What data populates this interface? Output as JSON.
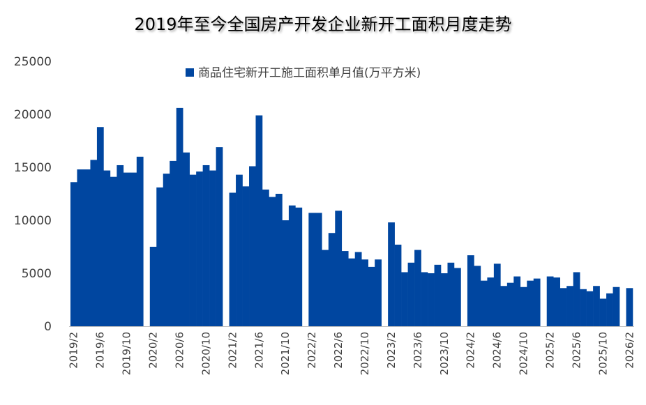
{
  "chart_data": {
    "type": "bar",
    "title": "2019年至今全国房产开发企业新开工面积月度走势",
    "series": [
      {
        "name": "商品住宅新开工施工面积单月值(万平方米)",
        "color": "#0046A0",
        "values": [
          13600,
          14800,
          14800,
          15700,
          18800,
          14700,
          14100,
          15200,
          14500,
          14500,
          16000,
          null,
          7500,
          13100,
          14400,
          15600,
          20600,
          16400,
          14300,
          14600,
          15200,
          14700,
          16900,
          null,
          12600,
          14300,
          13200,
          15100,
          19900,
          12900,
          12200,
          12500,
          10000,
          11400,
          11200,
          null,
          10700,
          10700,
          7200,
          8800,
          10900,
          7100,
          6400,
          7000,
          6300,
          5600,
          6300,
          null,
          9800,
          7700,
          5100,
          6000,
          7200,
          5100,
          5000,
          5800,
          5000,
          6000,
          5500,
          null,
          6700,
          5700,
          4300,
          4600,
          5900,
          3800,
          4100,
          4700,
          3700,
          4300,
          4500,
          null,
          4700,
          4600,
          3600,
          3800,
          5100,
          3500,
          3300,
          3800,
          2600,
          3100,
          3700,
          null,
          3600
        ]
      }
    ],
    "x_tick_labels": [
      "2019/2",
      "2019/6",
      "2019/10",
      "2020/2",
      "2020/6",
      "2020/10",
      "2021/2",
      "2021/6",
      "2021/10",
      "2022/2",
      "2022/6",
      "2022/10",
      "2023/2",
      "2023/6",
      "2023/10",
      "2024/2",
      "2024/6",
      "2024/10",
      "2025/2",
      "2025/6",
      "2025/10",
      "2026/2"
    ],
    "x_tick_positions": [
      0,
      4,
      8,
      12,
      16,
      20,
      24,
      28,
      32,
      36,
      40,
      44,
      48,
      52,
      56,
      60,
      64,
      68,
      72,
      76,
      80,
      84
    ],
    "y_ticks": [
      "0",
      "5000",
      "10000",
      "15000",
      "20000",
      "25000"
    ],
    "ylim": [
      0,
      25000
    ],
    "grid": false,
    "legend_position": "top-center"
  }
}
